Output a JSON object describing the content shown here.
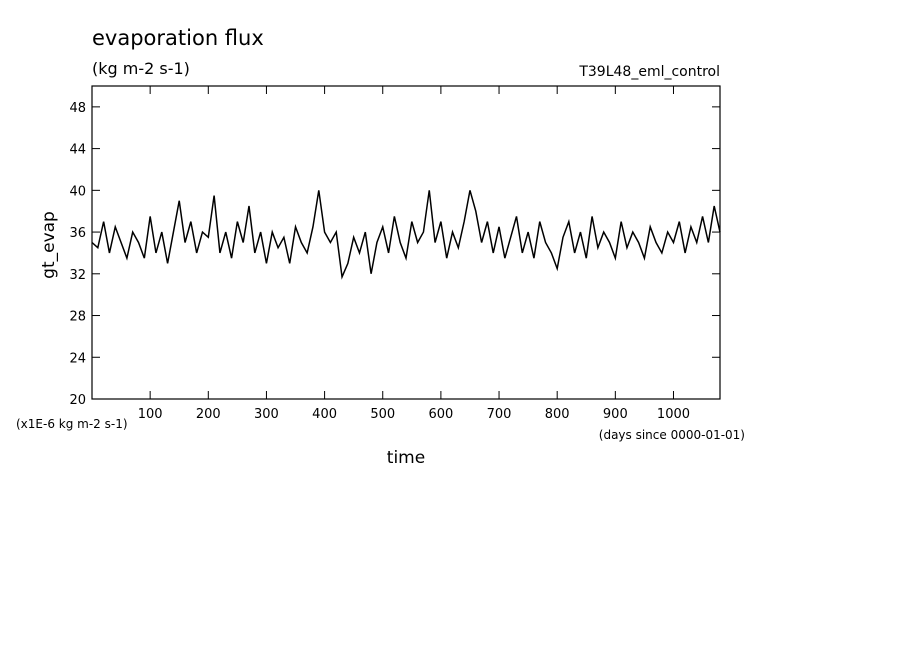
{
  "chart_data": {
    "type": "line",
    "title": "evaporation flux",
    "subtitle": "(kg m-2 s-1)",
    "run_label": "T39L48_eml_control",
    "y_label": "gt_evap",
    "x_label": "time",
    "y_units": "(x1E-6 kg m-2 s-1)",
    "x_units": "(days since 0000-01-01)",
    "xlim": [
      0,
      1080
    ],
    "xticks": [
      100,
      200,
      300,
      400,
      500,
      600,
      700,
      800,
      900,
      1000
    ],
    "ylim": [
      20,
      50
    ],
    "yticks": [
      20,
      24,
      28,
      32,
      36,
      40,
      44,
      48
    ],
    "x": [
      0,
      10,
      20,
      30,
      40,
      50,
      60,
      70,
      80,
      90,
      100,
      110,
      120,
      130,
      140,
      150,
      160,
      170,
      180,
      190,
      200,
      210,
      220,
      230,
      240,
      250,
      260,
      270,
      280,
      290,
      300,
      310,
      320,
      330,
      340,
      350,
      360,
      370,
      380,
      390,
      400,
      410,
      420,
      430,
      440,
      450,
      460,
      470,
      480,
      490,
      500,
      510,
      520,
      530,
      540,
      550,
      560,
      570,
      580,
      590,
      600,
      610,
      620,
      630,
      640,
      650,
      660,
      670,
      680,
      690,
      700,
      710,
      720,
      730,
      740,
      750,
      760,
      770,
      780,
      790,
      800,
      810,
      820,
      830,
      840,
      850,
      860,
      870,
      880,
      890,
      900,
      910,
      920,
      930,
      940,
      950,
      960,
      970,
      980,
      990,
      1000,
      1010,
      1020,
      1030,
      1040,
      1050,
      1060,
      1070,
      1080
    ],
    "series": [
      {
        "name": "gt_evap",
        "color": "#000000",
        "values": [
          35,
          34.5,
          37,
          34,
          36.5,
          35,
          33.5,
          36,
          35,
          33.5,
          37.5,
          34,
          36,
          33,
          36,
          39,
          35,
          37,
          34,
          36,
          35.5,
          39.5,
          34,
          36,
          33.5,
          37,
          35,
          38.5,
          34,
          36,
          33,
          36,
          34.5,
          35.5,
          33,
          36.5,
          35,
          34,
          36.5,
          40,
          36,
          35,
          36,
          31.7,
          33,
          35.5,
          34,
          36,
          32,
          35,
          36.5,
          34,
          37.5,
          35,
          33.5,
          37,
          35,
          36,
          40,
          35,
          37,
          33.5,
          36,
          34.5,
          37,
          40,
          38,
          35,
          37,
          34,
          36.5,
          33.5,
          35.5,
          37.5,
          34,
          36,
          33.5,
          37,
          35,
          34,
          32.5,
          35.5,
          37,
          34,
          36,
          33.5,
          37.5,
          34.5,
          36,
          35,
          33.5,
          37,
          34.5,
          36,
          35,
          33.5,
          36.5,
          35,
          34,
          36,
          35,
          37,
          34,
          36.5,
          35,
          37.5,
          35,
          38.5,
          36
        ]
      }
    ]
  }
}
